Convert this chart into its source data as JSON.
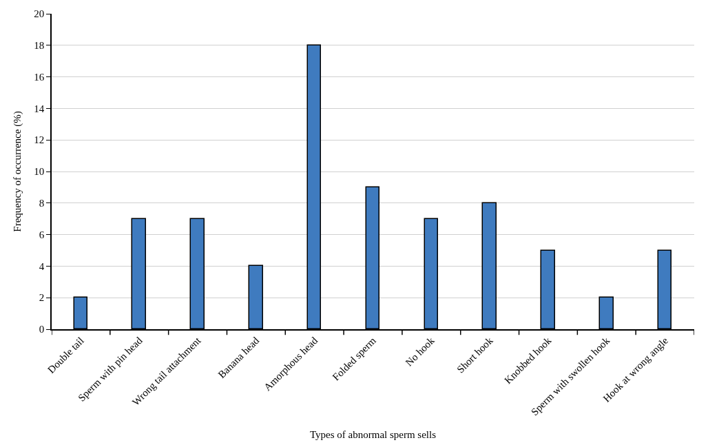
{
  "chart_data": {
    "type": "bar",
    "xlabel": "Types of abnormal sperm sells",
    "ylabel": "Frequency of occurrence (%)",
    "categories": [
      "Double tail",
      "Sperm with pin head",
      "Wrong tail attachment",
      "Banana head",
      "Amorphous head",
      "Folded sperm",
      "No hook",
      "Short hook",
      "Knobbed hook",
      "Sperm with swollen hook",
      "Hook at wrong angle"
    ],
    "values": [
      2,
      7,
      7,
      4,
      18,
      9,
      7,
      8,
      5,
      2,
      5
    ],
    "color": "#3f7bbf",
    "ylim": [
      0,
      20
    ],
    "yticks": [
      0,
      2,
      4,
      6,
      8,
      10,
      12,
      14,
      16,
      18,
      20
    ],
    "grid": "y",
    "legend": false
  }
}
